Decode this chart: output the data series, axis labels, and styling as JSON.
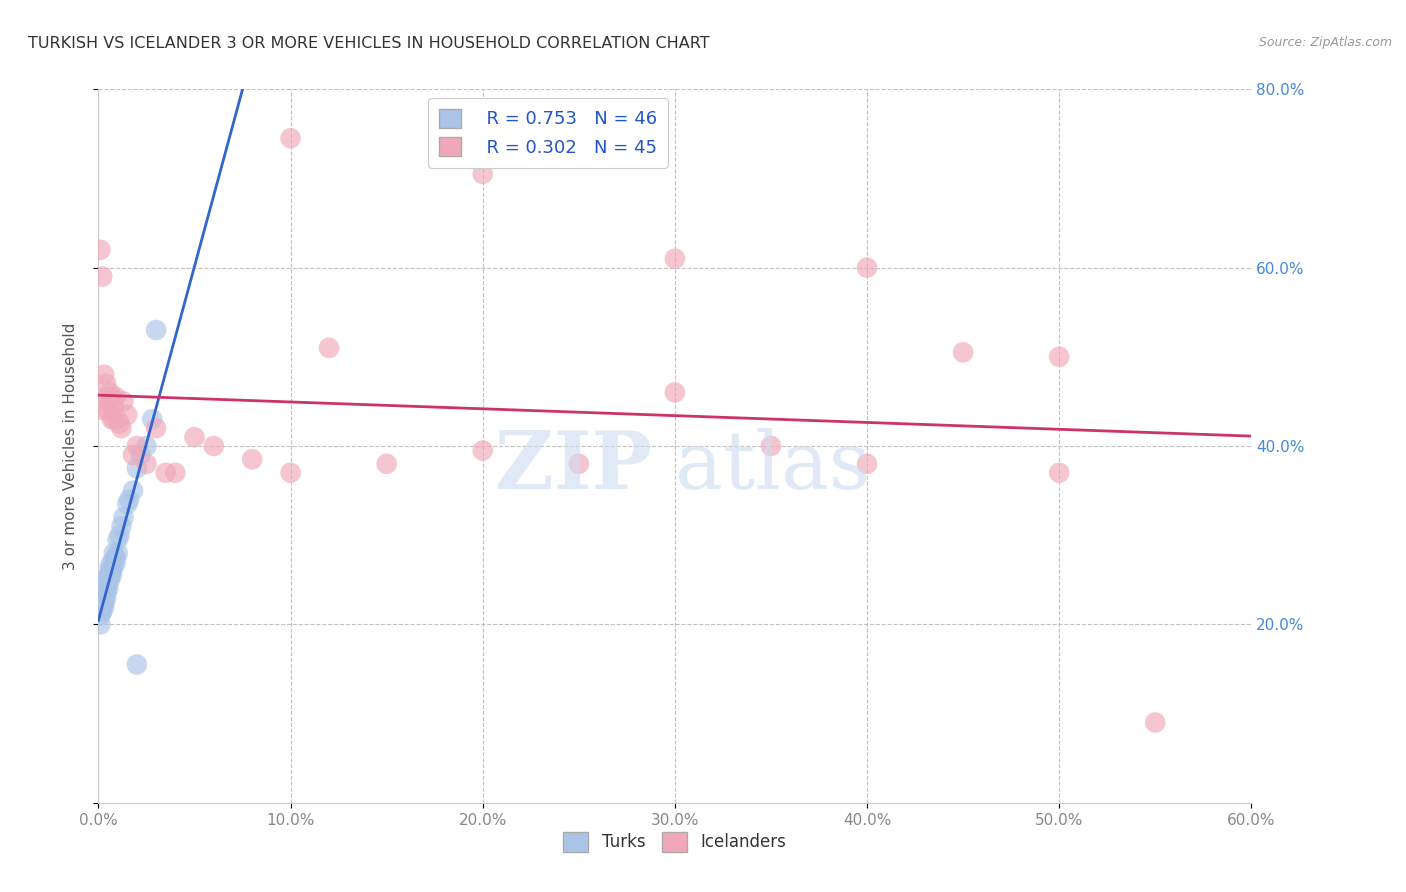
{
  "title": "TURKISH VS ICELANDER 3 OR MORE VEHICLES IN HOUSEHOLD CORRELATION CHART",
  "source": "Source: ZipAtlas.com",
  "ylabel": "3 or more Vehicles in Household",
  "xlim": [
    0.0,
    0.6
  ],
  "ylim": [
    0.0,
    0.8
  ],
  "xticks": [
    0.0,
    0.1,
    0.2,
    0.3,
    0.4,
    0.5,
    0.6
  ],
  "yticks": [
    0.0,
    0.2,
    0.4,
    0.6,
    0.8
  ],
  "xticklabels": [
    "0.0%",
    "",
    "",
    "",
    "",
    "",
    "60.0%"
  ],
  "yticklabels_right": [
    "",
    "20.0%",
    "40.0%",
    "60.0%",
    "80.0%"
  ],
  "turks_R": 0.753,
  "turks_N": 46,
  "icelanders_R": 0.302,
  "icelanders_N": 45,
  "turks_color": "#aac4e8",
  "turks_line_color": "#3366cc",
  "icelanders_color": "#f0a8b8",
  "icelanders_line_color": "#cc3366",
  "background_color": "#ffffff",
  "turks_x": [
    0.001,
    0.001,
    0.001,
    0.002,
    0.002,
    0.002,
    0.002,
    0.003,
    0.003,
    0.003,
    0.003,
    0.003,
    0.004,
    0.004,
    0.004,
    0.004,
    0.004,
    0.005,
    0.005,
    0.005,
    0.005,
    0.006,
    0.006,
    0.006,
    0.006,
    0.007,
    0.007,
    0.007,
    0.008,
    0.008,
    0.009,
    0.009,
    0.01,
    0.01,
    0.011,
    0.012,
    0.013,
    0.015,
    0.016,
    0.018,
    0.02,
    0.022,
    0.025,
    0.028,
    0.03,
    0.02
  ],
  "turks_y": [
    0.2,
    0.21,
    0.22,
    0.215,
    0.225,
    0.22,
    0.215,
    0.225,
    0.23,
    0.235,
    0.22,
    0.225,
    0.23,
    0.235,
    0.24,
    0.245,
    0.25,
    0.24,
    0.25,
    0.255,
    0.245,
    0.25,
    0.255,
    0.26,
    0.265,
    0.255,
    0.26,
    0.27,
    0.265,
    0.28,
    0.275,
    0.27,
    0.28,
    0.295,
    0.3,
    0.31,
    0.32,
    0.335,
    0.34,
    0.35,
    0.375,
    0.39,
    0.4,
    0.43,
    0.53,
    0.155
  ],
  "icelanders_x": [
    0.001,
    0.002,
    0.003,
    0.003,
    0.004,
    0.004,
    0.005,
    0.005,
    0.006,
    0.006,
    0.007,
    0.007,
    0.008,
    0.008,
    0.009,
    0.01,
    0.011,
    0.012,
    0.013,
    0.015,
    0.018,
    0.02,
    0.025,
    0.03,
    0.035,
    0.04,
    0.05,
    0.06,
    0.08,
    0.1,
    0.12,
    0.15,
    0.2,
    0.25,
    0.3,
    0.35,
    0.4,
    0.45,
    0.5,
    0.55,
    0.1,
    0.2,
    0.3,
    0.4,
    0.5
  ],
  "icelanders_y": [
    0.62,
    0.59,
    0.44,
    0.48,
    0.455,
    0.47,
    0.45,
    0.44,
    0.45,
    0.46,
    0.43,
    0.455,
    0.445,
    0.43,
    0.455,
    0.43,
    0.425,
    0.42,
    0.45,
    0.435,
    0.39,
    0.4,
    0.38,
    0.42,
    0.37,
    0.37,
    0.41,
    0.4,
    0.385,
    0.37,
    0.51,
    0.38,
    0.395,
    0.38,
    0.61,
    0.4,
    0.38,
    0.505,
    0.37,
    0.09,
    0.745,
    0.705,
    0.46,
    0.6,
    0.5
  ]
}
